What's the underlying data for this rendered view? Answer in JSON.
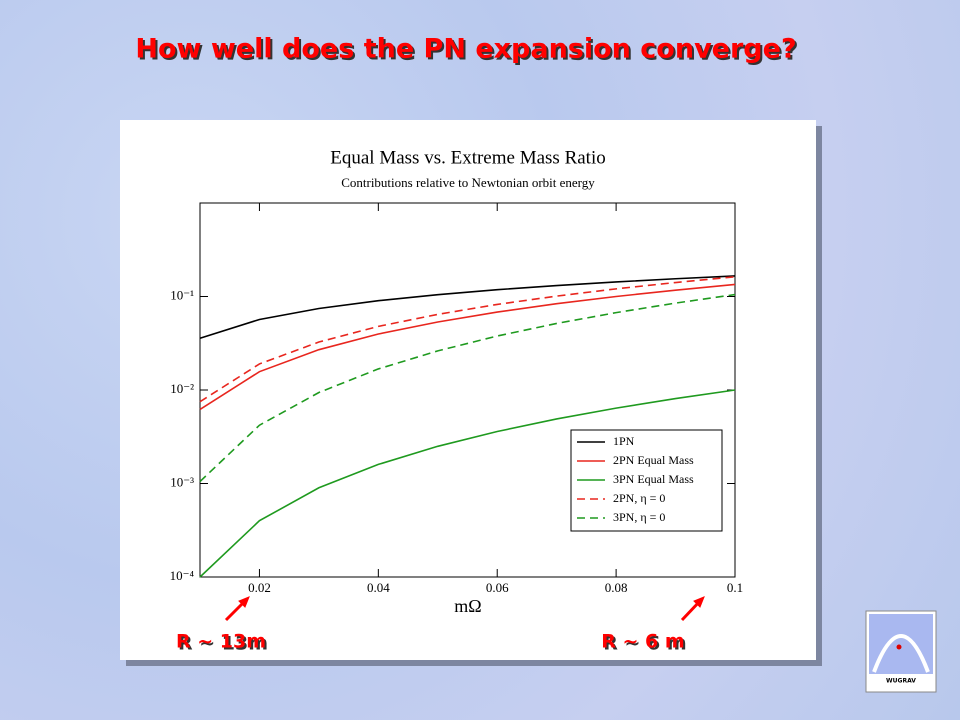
{
  "slide_title": "How well does the PN expansion converge?",
  "annotations": [
    "R ~ 13m",
    "R ~ 6 m"
  ],
  "logo_text": "WUGRAV",
  "chart_data": {
    "type": "line",
    "title": "Equal Mass vs. Extreme Mass Ratio",
    "subtitle": "Contributions relative to Newtonian orbit energy",
    "x_label": "mΩ",
    "x": [
      0.01,
      0.02,
      0.03,
      0.04,
      0.05,
      0.06,
      0.07,
      0.08,
      0.09,
      0.1
    ],
    "xlim": [
      0.01,
      0.1
    ],
    "xticks": [
      0.02,
      0.04,
      0.06,
      0.08,
      0.1
    ],
    "ylim": [
      0.0001,
      1
    ],
    "log_y": true,
    "yticks": [
      {
        "value": 0.0001,
        "label": "10⁻⁴"
      },
      {
        "value": 0.001,
        "label": "10⁻³"
      },
      {
        "value": 0.01,
        "label": "10⁻²"
      },
      {
        "value": 0.1,
        "label": "10⁻¹"
      }
    ],
    "legend": "lower right",
    "series": [
      {
        "name": "1PN",
        "color": "#000000",
        "dashed": false,
        "values": [
          0.0358,
          0.0568,
          0.0744,
          0.0902,
          0.1046,
          0.1182,
          0.131,
          0.1431,
          0.1548,
          0.166
        ]
      },
      {
        "name": "2PN Equal Mass",
        "color": "#e8261e",
        "dashed": false,
        "values": [
          0.0062,
          0.0157,
          0.027,
          0.0397,
          0.0534,
          0.0682,
          0.0837,
          0.1,
          0.1169,
          0.1346
        ]
      },
      {
        "name": "3PN Equal Mass",
        "color": "#1f9a1f",
        "dashed": false,
        "values": [
          0.0001,
          0.0004,
          0.0009,
          0.0016,
          0.0025,
          0.0036,
          0.0049,
          0.0064,
          0.0081,
          0.01
        ]
      },
      {
        "name": "2PN,  η = 0",
        "color": "#e8261e",
        "dashed": true,
        "values": [
          0.0075,
          0.019,
          0.0326,
          0.0479,
          0.0644,
          0.0823,
          0.101,
          0.1207,
          0.1411,
          0.1624
        ]
      },
      {
        "name": "3PN, η = 0",
        "color": "#1f9a1f",
        "dashed": true,
        "values": [
          0.00105,
          0.0042,
          0.0094,
          0.0168,
          0.0262,
          0.0378,
          0.0515,
          0.0672,
          0.085,
          0.1049
        ]
      }
    ]
  }
}
